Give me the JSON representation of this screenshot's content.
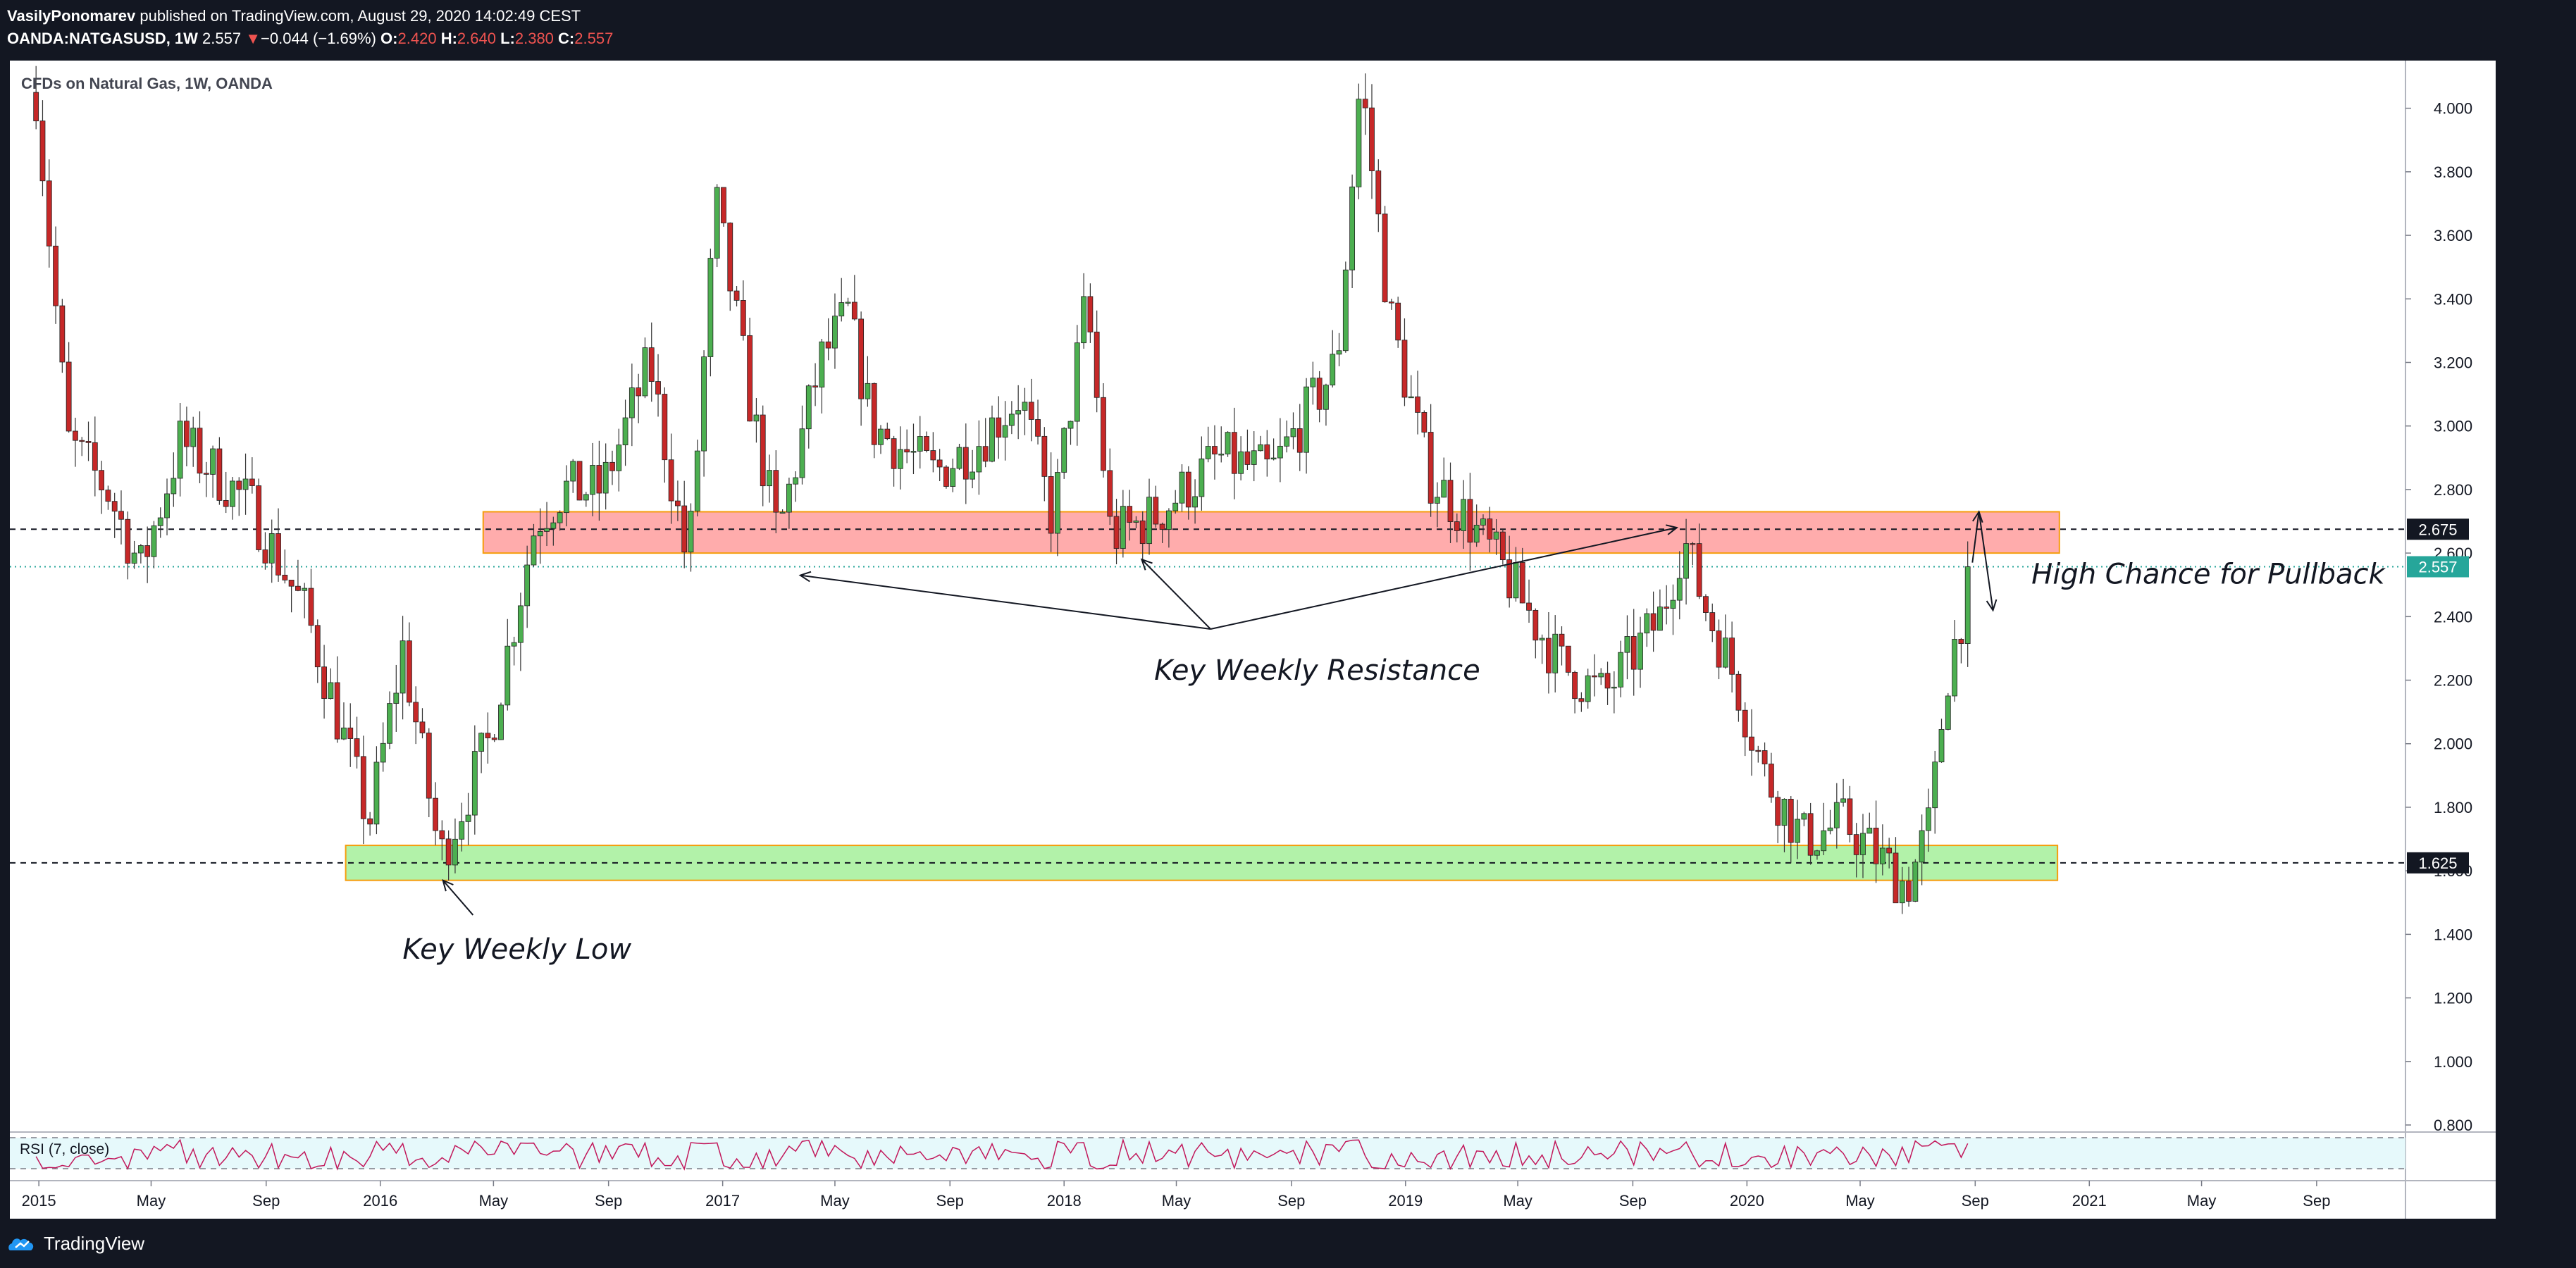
{
  "header": {
    "author": "VasilyPonomarev",
    "published": "published on TradingView.com, August 29, 2020 14:02:49 CEST",
    "symbol": "OANDA:NATGASUSD, 1W",
    "last": "2.557",
    "change_arrow": "▼",
    "change": "−0.044 (−1.69%)",
    "o_label": "O:",
    "o_value": "2.420",
    "h_label": "H:",
    "h_value": "2.640",
    "l_label": "L:",
    "l_value": "2.380",
    "c_label": "C:",
    "c_value": "2.557"
  },
  "chart_data": {
    "type": "candlestick",
    "title": "CFDs on Natural Gas, 1W, OANDA",
    "x_labels": [
      "2015",
      "May",
      "Sep",
      "2016",
      "May",
      "Sep",
      "2017",
      "May",
      "Sep",
      "2018",
      "May",
      "Sep",
      "2019",
      "May",
      "Sep",
      "2020",
      "May",
      "Sep",
      "2021",
      "May",
      "Sep"
    ],
    "y_ticks": [
      4.0,
      3.8,
      3.6,
      3.4,
      3.2,
      3.0,
      2.8,
      2.6,
      2.4,
      2.2,
      2.0,
      1.8,
      1.6,
      1.4,
      1.2,
      1.0,
      0.8
    ],
    "ylim": [
      0.78,
      4.15
    ],
    "price_path": [
      [
        "2014-12-29",
        4.05
      ],
      [
        "2015-02-01",
        2.95
      ],
      [
        "2015-03-15",
        2.8
      ],
      [
        "2015-04-20",
        2.55
      ],
      [
        "2015-06-01",
        2.95
      ],
      [
        "2015-07-10",
        2.85
      ],
      [
        "2015-08-15",
        2.75
      ],
      [
        "2015-10-15",
        2.4
      ],
      [
        "2015-12-20",
        1.75
      ],
      [
        "2016-01-25",
        2.3
      ],
      [
        "2016-03-05",
        1.64
      ],
      [
        "2016-04-25",
        2.0
      ],
      [
        "2016-06-15",
        2.7
      ],
      [
        "2016-07-15",
        2.8
      ],
      [
        "2016-08-25",
        2.8
      ],
      [
        "2016-10-15",
        3.2
      ],
      [
        "2016-11-25",
        2.55
      ],
      [
        "2016-12-25",
        3.7
      ],
      [
        "2017-02-01",
        3.05
      ],
      [
        "2017-03-01",
        2.65
      ],
      [
        "2017-04-15",
        3.2
      ],
      [
        "2017-05-15",
        3.35
      ],
      [
        "2017-06-10",
        3.0
      ],
      [
        "2017-08-15",
        2.85
      ],
      [
        "2017-10-01",
        2.95
      ],
      [
        "2017-11-15",
        3.1
      ],
      [
        "2017-12-20",
        2.7
      ],
      [
        "2018-01-25",
        3.4
      ],
      [
        "2018-02-20",
        2.65
      ],
      [
        "2018-04-10",
        2.72
      ],
      [
        "2018-06-15",
        2.9
      ],
      [
        "2018-08-10",
        2.85
      ],
      [
        "2018-10-20",
        3.2
      ],
      [
        "2018-11-14",
        4.1
      ],
      [
        "2018-12-15",
        3.35
      ],
      [
        "2019-01-25",
        2.85
      ],
      [
        "2019-03-10",
        2.7
      ],
      [
        "2019-04-15",
        2.55
      ],
      [
        "2019-06-15",
        2.25
      ],
      [
        "2019-08-01",
        2.15
      ],
      [
        "2019-10-01",
        2.4
      ],
      [
        "2019-10-25",
        2.65
      ],
      [
        "2019-11-15",
        2.45
      ],
      [
        "2019-12-20",
        2.2
      ],
      [
        "2020-01-20",
        1.9
      ],
      [
        "2020-03-01",
        1.7
      ],
      [
        "2020-04-15",
        1.75
      ],
      [
        "2020-06-20",
        1.55
      ],
      [
        "2020-07-15",
        1.75
      ],
      [
        "2020-08-01",
        2.2
      ],
      [
        "2020-08-29",
        2.557
      ]
    ],
    "zones": [
      {
        "from": "2016-04-20",
        "to": "2020-11-30",
        "low": 2.6,
        "high": 2.73,
        "color": "#ff9e9e"
      },
      {
        "from": "2015-11-25",
        "to": "2020-11-28",
        "low": 1.57,
        "high": 1.68,
        "color": "#a5f09a"
      }
    ],
    "hlines": [
      {
        "value": 2.675,
        "label": "2.675",
        "style": "dashed",
        "color": "#131722"
      },
      {
        "value": 1.625,
        "label": "1.625",
        "style": "dashed",
        "color": "#131722"
      },
      {
        "value": 2.557,
        "label": "2.557",
        "style": "dotted",
        "color": "#26a69a"
      }
    ],
    "annotations": [
      {
        "text": "Key Weekly Resistance",
        "at": [
          "2018-05-15",
          2.25
        ]
      },
      {
        "text": "Key Weekly Low",
        "at": [
          "2016-03-10",
          1.35
        ]
      },
      {
        "text": "High Chance for Pullback",
        "at": [
          "2020-10-01",
          2.53
        ]
      }
    ],
    "indicator": {
      "name": "RSI (7, close)",
      "upper": 70,
      "lower": 30
    }
  },
  "footer": {
    "brand": "TradingView"
  }
}
